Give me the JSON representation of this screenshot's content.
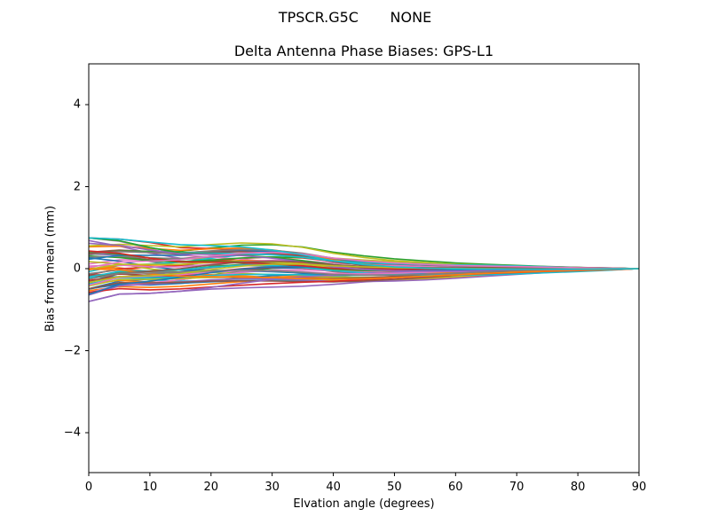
{
  "figure": {
    "suptitle": "TPSCR.G5C       NONE",
    "title": "Delta Antenna Phase Biases: GPS-L1",
    "xlabel": "Elvation angle (degrees)",
    "ylabel": "Bias from mean (mm)"
  },
  "chart_data": {
    "type": "line",
    "title": "Delta Antenna Phase Biases: GPS-L1",
    "suptitle": "TPSCR.G5C       NONE",
    "xlabel": "Elvation angle (degrees)",
    "ylabel": "Bias from mean (mm)",
    "xlim": [
      0,
      90
    ],
    "ylim": [
      -5,
      5
    ],
    "xticks": [
      0,
      10,
      20,
      30,
      40,
      50,
      60,
      70,
      80,
      90
    ],
    "xtick_labels": [
      "0",
      "10",
      "20",
      "30",
      "40",
      "50",
      "60",
      "70",
      "80",
      "90"
    ],
    "yticks": [
      -4,
      -2,
      0,
      2,
      4
    ],
    "ytick_labels": [
      "−4",
      "−2",
      "0",
      "2",
      "4"
    ],
    "grid": false,
    "legend": null,
    "x": [
      0,
      5,
      10,
      15,
      20,
      25,
      30,
      35,
      40,
      45,
      50,
      55,
      60,
      65,
      70,
      75,
      80,
      85,
      90
    ],
    "series_count_estimate": 60,
    "envelope": {
      "upper": [
        0.75,
        0.72,
        0.65,
        0.6,
        0.66,
        0.72,
        0.73,
        0.68,
        0.56,
        0.48,
        0.42,
        0.38,
        0.33,
        0.29,
        0.24,
        0.18,
        0.12,
        0.06,
        0.0
      ],
      "lower": [
        -0.8,
        -0.62,
        -0.6,
        -0.55,
        -0.5,
        -0.47,
        -0.45,
        -0.44,
        -0.43,
        -0.4,
        -0.36,
        -0.32,
        -0.27,
        -0.22,
        -0.17,
        -0.12,
        -0.08,
        -0.04,
        0.0
      ]
    },
    "colors": [
      "#1f77b4",
      "#ff7f0e",
      "#2ca02c",
      "#d62728",
      "#9467bd",
      "#8c564b",
      "#e377c2",
      "#7f7f7f",
      "#bcbd22",
      "#17becf"
    ],
    "note": "Many overlapping satellite-bias curves (tab10 color cycle), spread about ±0.8 mm at 0° elevation, converging to 0 at 90°."
  }
}
